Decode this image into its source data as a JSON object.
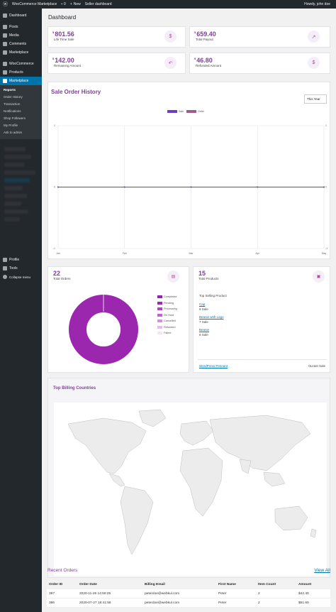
{
  "adminbar": {
    "site_name": "WooCommerce Marketplace",
    "comments_count": "0",
    "new_label": "New",
    "seller_dashboard": "Seller dashboard",
    "howdy": "Howdy, john doe"
  },
  "sidebar": {
    "items": [
      {
        "label": "Dashboard",
        "icon": "dashboard-icon"
      },
      {
        "label": "Posts",
        "icon": "pin-icon"
      },
      {
        "label": "Media",
        "icon": "media-icon"
      },
      {
        "label": "Comments",
        "icon": "comment-icon"
      },
      {
        "label": "Marketplace",
        "icon": "store-icon"
      },
      {
        "label": "WooCommerce",
        "icon": "woo-icon"
      },
      {
        "label": "Products",
        "icon": "box-icon"
      },
      {
        "label": "Marketplace",
        "icon": "store-icon"
      }
    ],
    "submenu": [
      "Reports",
      "Order History",
      "Transaction",
      "Notifications",
      "Shop Followers",
      "My Profile",
      "Ask to admin"
    ],
    "bottom_items": [
      {
        "label": "Profile",
        "icon": "user-icon"
      },
      {
        "label": "Tools",
        "icon": "wrench-icon"
      },
      {
        "label": "Collapse menu",
        "icon": "collapse-icon"
      }
    ]
  },
  "page": {
    "title": "Dashboard"
  },
  "stats": [
    {
      "currency": "$",
      "amount": "801.56",
      "label": "Life Time Sale",
      "icon": "dollar-icon",
      "glyph": "$"
    },
    {
      "currency": "$",
      "amount": "659.40",
      "label": "Total Payout",
      "icon": "trend-up-icon",
      "glyph": "↗"
    },
    {
      "currency": "$",
      "amount": "142.00",
      "label": "Remaining Amount",
      "icon": "undo-icon",
      "glyph": "↶"
    },
    {
      "currency": "$",
      "amount": "46.80",
      "label": "Refunded Amount",
      "icon": "dollar-icon",
      "glyph": "$"
    }
  ],
  "sale_history": {
    "title": "Sale Order History",
    "period": "This Year",
    "legend": [
      {
        "name": "Sale",
        "color": "#6b3fc4"
      },
      {
        "name": "Order",
        "color": "#a05a8c"
      }
    ]
  },
  "chart_data": {
    "type": "line",
    "categories": [
      "Jan",
      "Feb",
      "Mar",
      "Apr",
      "May"
    ],
    "series": [
      {
        "name": "Sale",
        "values": [
          0,
          0,
          0,
          0,
          0
        ]
      },
      {
        "name": "Order",
        "values": [
          0,
          0,
          0,
          0,
          0
        ]
      }
    ],
    "y_ticks": [
      "1",
      "0",
      "-1"
    ],
    "ylim": [
      -1,
      1
    ],
    "legend_position": "top-center",
    "grid": true
  },
  "orders_card": {
    "count": "22",
    "label": "Total Orders",
    "icon": "clipboard-icon",
    "legend": [
      {
        "name": "Completed",
        "color": "#8e24aa"
      },
      {
        "name": "Pending",
        "color": "#9c27b0"
      },
      {
        "name": "Processing",
        "color": "#ab47bc"
      },
      {
        "name": "On Hold",
        "color": "#ba68c8"
      },
      {
        "name": "Cancelled",
        "color": "#ce93d8"
      },
      {
        "name": "Refunded",
        "color": "#e1bee7"
      },
      {
        "name": "Failed",
        "color": "#f3e5f5"
      }
    ],
    "donut": {
      "share_completed": 1.0,
      "color": "#9b27af"
    }
  },
  "products_card": {
    "count": "15",
    "label": "Total Products",
    "icon": "save-icon",
    "list_title": "Top Selling Product",
    "products": [
      {
        "name": "Cap",
        "sales": "9 Sale"
      },
      {
        "name": "Beanie with Logo",
        "sales": "7 Sale"
      },
      {
        "name": "Beanie",
        "sales": "6 Sale"
      }
    ],
    "footer_link": "WordPress Pennant",
    "footer_value": "0Least Sale"
  },
  "billing": {
    "title": "Top Billing Countries"
  },
  "recent_orders": {
    "title": "Recent Orders",
    "view_all": "View All",
    "columns": [
      "Order ID",
      "Order Date",
      "Billing Email",
      "First Name",
      "Item Count",
      "Amount"
    ],
    "rows": [
      [
        "397",
        "2020-11-26 14:58:25",
        "peterdoe@webkul.com",
        "Peter",
        "2",
        "$42.40"
      ],
      [
        "386",
        "2020-07-27 18:41:56",
        "peterdoe@webkul.com",
        "Peter",
        "2",
        "$51.60"
      ]
    ]
  },
  "colors": {
    "accent": "#7f3f98",
    "admin_blue": "#0073aa",
    "admin_dark": "#23282d"
  }
}
